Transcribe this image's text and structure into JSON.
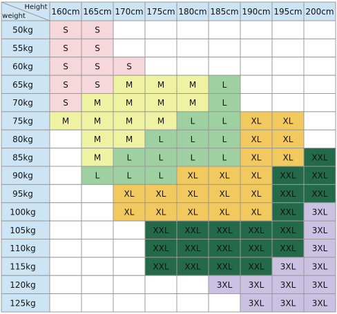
{
  "table": {
    "corner": {
      "top": "Height",
      "bottom": "weight"
    },
    "columns": [
      "160cm",
      "165cm",
      "170cm",
      "175cm",
      "180cm",
      "185cm",
      "190cm",
      "195cm",
      "200cm"
    ],
    "rows": [
      {
        "label": "50kg",
        "cells": [
          "S",
          "S",
          null,
          null,
          null,
          null,
          null,
          null,
          null
        ]
      },
      {
        "label": "55kg",
        "cells": [
          "S",
          "S",
          null,
          null,
          null,
          null,
          null,
          null,
          null
        ]
      },
      {
        "label": "60kg",
        "cells": [
          "S",
          "S",
          "S",
          null,
          null,
          null,
          null,
          null,
          null
        ]
      },
      {
        "label": "65kg",
        "cells": [
          "S",
          "S",
          "M",
          "M",
          "M",
          "L",
          null,
          null,
          null
        ]
      },
      {
        "label": "70kg",
        "cells": [
          "S",
          "M",
          "M",
          "M",
          "M",
          "L",
          null,
          null,
          null
        ]
      },
      {
        "label": "75kg",
        "cells": [
          "M",
          "M",
          "M",
          "M",
          "L",
          "L",
          "XL",
          "XL",
          null
        ]
      },
      {
        "label": "80kg",
        "cells": [
          null,
          "M",
          "M",
          "L",
          "L",
          "L",
          "XL",
          "XL",
          null
        ]
      },
      {
        "label": "85kg",
        "cells": [
          null,
          "M",
          "L",
          "L",
          "L",
          "L",
          "XL",
          "XL",
          "XXL"
        ]
      },
      {
        "label": "90kg",
        "cells": [
          null,
          "L",
          "L",
          "L",
          "XL",
          "XL",
          "XL",
          "XXL",
          "XXL"
        ]
      },
      {
        "label": "95kg",
        "cells": [
          null,
          null,
          "XL",
          "XL",
          "XL",
          "XL",
          "XL",
          "XXL",
          "XXL"
        ]
      },
      {
        "label": "100kg",
        "cells": [
          null,
          null,
          "XL",
          "XL",
          "XL",
          "XL",
          "XL",
          "XXL",
          "3XL"
        ]
      },
      {
        "label": "105kg",
        "cells": [
          null,
          null,
          null,
          "XXL",
          "XXL",
          "XXL",
          "XXL",
          "XXL",
          "3XL"
        ]
      },
      {
        "label": "110kg",
        "cells": [
          null,
          null,
          null,
          "XXL",
          "XXL",
          "XXL",
          "XXL",
          "XXL",
          "3XL"
        ]
      },
      {
        "label": "115kg",
        "cells": [
          null,
          null,
          null,
          "XXL",
          "XXL",
          "XXL",
          "XXL",
          "3XL",
          "3XL"
        ]
      },
      {
        "label": "120kg",
        "cells": [
          null,
          null,
          null,
          null,
          null,
          "3XL",
          "3XL",
          "3XL",
          "3XL"
        ]
      },
      {
        "label": "125kg",
        "cells": [
          null,
          null,
          null,
          null,
          null,
          null,
          "3XL",
          "3XL",
          "3XL"
        ]
      }
    ],
    "colors": {
      "S": "#f6d8dc",
      "M": "#eef2a2",
      "L": "#9fd0a2",
      "XL": "#f2c95e",
      "XXL": "#24694a",
      "3XL": "#cbc1e2"
    }
  }
}
